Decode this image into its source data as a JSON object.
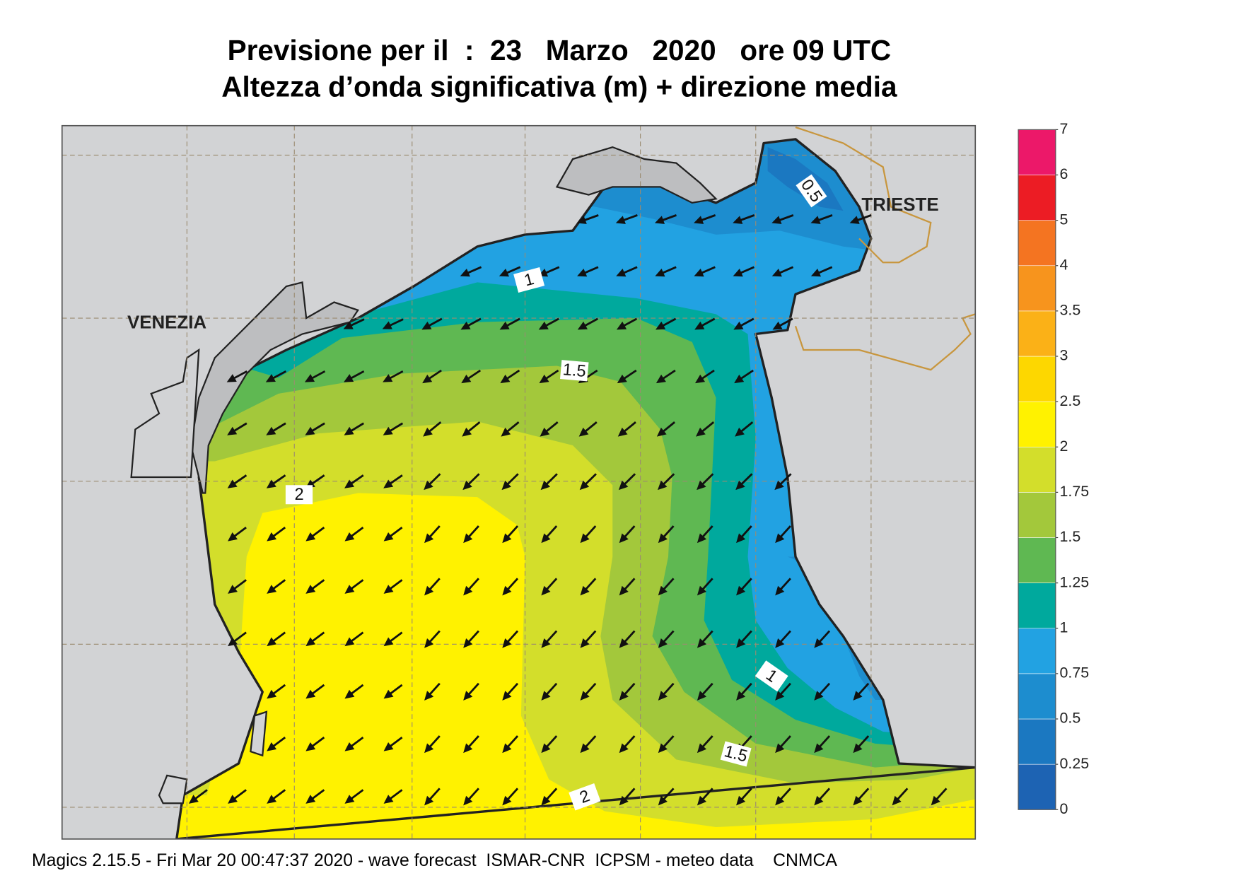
{
  "header": {
    "title": "Previsione per il  :  23   Marzo   2020   ore 09 UTC",
    "subtitle": "Altezza d’onda significativa (m) + direzione media"
  },
  "places": [
    "VENEZIA",
    "TRIESTE"
  ],
  "contour_labels": [
    0.5,
    1,
    1.5,
    2,
    1,
    1.5,
    2
  ],
  "colorbar": {
    "levels": [
      0,
      0.25,
      0.5,
      0.75,
      1,
      1.25,
      1.5,
      1.75,
      2,
      2.5,
      3,
      3.5,
      4,
      5,
      6,
      7
    ],
    "colors": [
      "#1d63b3",
      "#1b78c1",
      "#1d8dcf",
      "#22a2e2",
      "#00a99d",
      "#5fb852",
      "#a3c83b",
      "#d3de2b",
      "#fff200",
      "#fdd700",
      "#fbb117",
      "#f7941d",
      "#f47421",
      "#ec1c24",
      "#ec1869"
    ]
  },
  "footer": "Magics 2.15.5 - Fri Mar 20 00:47:37 2020 - wave forecast  ISMAR-CNR  ICPSM - meteo data    CNMCA"
}
